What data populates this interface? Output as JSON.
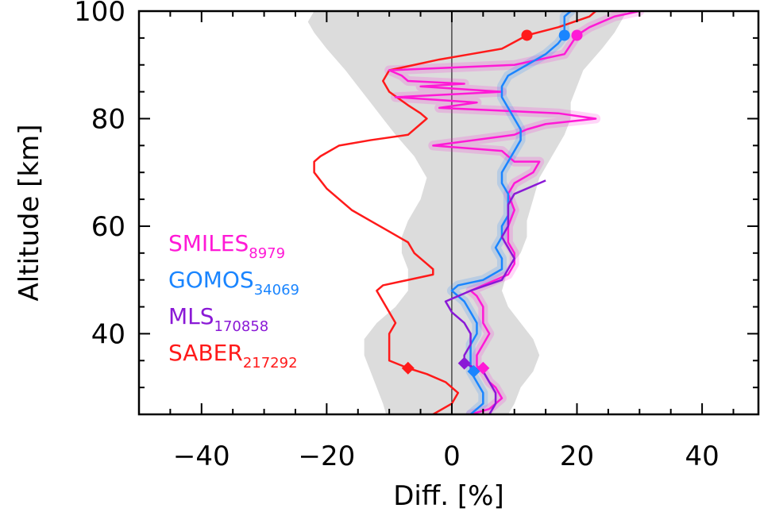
{
  "chart_data": {
    "type": "line",
    "xlabel": "Diff. [%]",
    "ylabel": "Altitude [km]",
    "xlim": [
      -50,
      49
    ],
    "ylim": [
      25,
      100
    ],
    "xticks": [
      -40,
      -20,
      0,
      20,
      40
    ],
    "xtick_labels": [
      "−40",
      "−20",
      "0",
      "20",
      "40"
    ],
    "yticks": [
      40,
      60,
      80,
      100
    ],
    "ytick_labels": [
      "40",
      "60",
      "80",
      "100"
    ],
    "grid": false,
    "legend_position": "left-center",
    "colors": {
      "SMILES": "#ff19d6",
      "GOMOS": "#1a85ff",
      "MLS": "#8a19d6",
      "SABER": "#ff1a1a",
      "envelope": "#dcdcdc",
      "zero_line": "#000000"
    },
    "legend": [
      {
        "key": "SMILES",
        "name": "SMILES",
        "sub": "8979"
      },
      {
        "key": "GOMOS",
        "name": "GOMOS",
        "sub": "34069"
      },
      {
        "key": "MLS",
        "name": "MLS",
        "sub": "170858"
      },
      {
        "key": "SABER",
        "name": "SABER",
        "sub": "217292"
      }
    ],
    "envelope": {
      "left": [
        [
          -10.5,
          25
        ],
        [
          -11,
          27
        ],
        [
          -12,
          30
        ],
        [
          -13,
          33
        ],
        [
          -14,
          36
        ],
        [
          -14,
          39
        ],
        [
          -12,
          42
        ],
        [
          -9,
          45
        ],
        [
          -7,
          48
        ],
        [
          -7,
          52
        ],
        [
          -8,
          55
        ],
        [
          -8,
          58
        ],
        [
          -7,
          61
        ],
        [
          -5,
          65
        ],
        [
          -4,
          69
        ],
        [
          -6,
          73
        ],
        [
          -9,
          77
        ],
        [
          -11,
          80
        ],
        [
          -13,
          83
        ],
        [
          -15,
          86
        ],
        [
          -17,
          89
        ],
        [
          -20,
          93
        ],
        [
          -22,
          96
        ],
        [
          -23,
          98
        ],
        [
          -22,
          100
        ]
      ],
      "right": [
        [
          9,
          25
        ],
        [
          10,
          27
        ],
        [
          11,
          30
        ],
        [
          13,
          33
        ],
        [
          14,
          36
        ],
        [
          13,
          39
        ],
        [
          11,
          42
        ],
        [
          9,
          45
        ],
        [
          8,
          48
        ],
        [
          9,
          52
        ],
        [
          11,
          55
        ],
        [
          12,
          58
        ],
        [
          12,
          61
        ],
        [
          13,
          65
        ],
        [
          14,
          69
        ],
        [
          16,
          73
        ],
        [
          18,
          77
        ],
        [
          19,
          80
        ],
        [
          19,
          83
        ],
        [
          20,
          86
        ],
        [
          21,
          89
        ],
        [
          24,
          93
        ],
        [
          26,
          96
        ],
        [
          27,
          98
        ],
        [
          28,
          100
        ]
      ]
    },
    "series": [
      {
        "key": "SABER",
        "points": [
          [
            -3,
            25
          ],
          [
            0,
            27
          ],
          [
            1,
            29
          ],
          [
            -1,
            31
          ],
          [
            -4,
            32.5
          ],
          [
            -7,
            33.6
          ],
          [
            -10,
            35
          ],
          [
            -10,
            38
          ],
          [
            -10,
            40
          ],
          [
            -9,
            42
          ],
          [
            -10,
            44
          ],
          [
            -11,
            46
          ],
          [
            -12,
            48
          ],
          [
            -11,
            49
          ],
          [
            -3,
            51
          ],
          [
            -3,
            52
          ],
          [
            -4,
            53
          ],
          [
            -6,
            55
          ],
          [
            -7,
            57
          ],
          [
            -10,
            59
          ],
          [
            -13,
            61
          ],
          [
            -16,
            63
          ],
          [
            -18,
            65
          ],
          [
            -20,
            67
          ],
          [
            -22,
            70
          ],
          [
            -22,
            72
          ],
          [
            -21,
            73
          ],
          [
            -18,
            75
          ],
          [
            -13,
            76
          ],
          [
            -7,
            77
          ],
          [
            -5,
            79
          ],
          [
            -4,
            80
          ],
          [
            -5,
            81
          ],
          [
            -7,
            82.5
          ],
          [
            -10,
            85
          ],
          [
            -11,
            87
          ],
          [
            -10,
            89
          ],
          [
            -6,
            90
          ],
          [
            -2,
            91
          ],
          [
            3,
            92
          ],
          [
            8,
            93
          ],
          [
            12,
            95.5
          ],
          [
            17,
            97
          ],
          [
            22,
            99
          ],
          [
            23,
            100
          ]
        ]
      },
      {
        "key": "SMILES",
        "points": [
          [
            3,
            25
          ],
          [
            6,
            26
          ],
          [
            8,
            28
          ],
          [
            7,
            30
          ],
          [
            6,
            31
          ],
          [
            5,
            33
          ],
          [
            4,
            34
          ],
          [
            4,
            36
          ],
          [
            5,
            38
          ],
          [
            6,
            40
          ],
          [
            5,
            42
          ],
          [
            5,
            45
          ],
          [
            4,
            47
          ],
          [
            3,
            48
          ],
          [
            9,
            51
          ],
          [
            10,
            53
          ],
          [
            10,
            55
          ],
          [
            9,
            57
          ],
          [
            9,
            60
          ],
          [
            10,
            63
          ],
          [
            9,
            66
          ],
          [
            10,
            68
          ],
          [
            13,
            70
          ],
          [
            14,
            72
          ],
          [
            10,
            72
          ],
          [
            8,
            74
          ],
          [
            -3,
            75
          ],
          [
            10,
            77
          ],
          [
            12,
            78
          ],
          [
            15,
            79
          ],
          [
            23,
            80
          ],
          [
            17,
            81
          ],
          [
            -2,
            82
          ],
          [
            4,
            83
          ],
          [
            -9,
            84
          ],
          [
            8,
            85
          ],
          [
            -5,
            86
          ],
          [
            2,
            86.5
          ],
          [
            -7,
            87
          ],
          [
            -8,
            88
          ],
          [
            -10,
            89
          ],
          [
            10,
            90
          ],
          [
            18,
            92
          ],
          [
            20,
            95.5
          ],
          [
            22,
            97
          ],
          [
            26,
            99
          ],
          [
            30,
            100
          ]
        ]
      },
      {
        "key": "GOMOS",
        "points": [
          [
            3,
            25
          ],
          [
            5,
            27
          ],
          [
            5,
            29
          ],
          [
            4,
            31
          ],
          [
            3,
            33
          ],
          [
            3,
            34
          ],
          [
            3,
            36
          ],
          [
            3,
            38
          ],
          [
            4,
            40
          ],
          [
            4,
            42
          ],
          [
            3,
            44
          ],
          [
            2,
            46
          ],
          [
            0,
            48
          ],
          [
            1,
            49
          ],
          [
            5,
            50
          ],
          [
            8,
            52
          ],
          [
            8,
            54
          ],
          [
            7,
            56
          ],
          [
            8,
            58
          ],
          [
            8,
            60
          ],
          [
            9,
            62
          ],
          [
            9,
            64
          ],
          [
            9,
            66
          ],
          [
            8,
            68
          ],
          [
            8,
            70
          ],
          [
            9,
            72
          ],
          [
            10,
            74
          ],
          [
            11,
            76
          ],
          [
            11,
            78
          ],
          [
            10,
            80
          ],
          [
            9,
            82
          ],
          [
            8,
            84
          ],
          [
            8,
            86
          ],
          [
            9,
            88
          ],
          [
            12,
            90
          ],
          [
            15,
            92
          ],
          [
            17,
            94
          ],
          [
            18,
            95.5
          ],
          [
            18,
            97
          ],
          [
            18,
            99
          ],
          [
            19,
            100
          ]
        ]
      },
      {
        "key": "MLS",
        "points": [
          [
            6,
            25
          ],
          [
            7,
            27
          ],
          [
            7,
            29
          ],
          [
            6,
            31
          ],
          [
            5,
            33
          ],
          [
            3,
            34
          ],
          [
            2,
            34.5
          ],
          [
            2,
            36
          ],
          [
            3,
            38
          ],
          [
            3,
            40
          ],
          [
            2,
            42
          ],
          [
            0,
            44
          ],
          [
            -1,
            46
          ],
          [
            1,
            47
          ],
          [
            3,
            48
          ],
          [
            8,
            50
          ],
          [
            9,
            52
          ],
          [
            10,
            54
          ],
          [
            9,
            56
          ],
          [
            8,
            58
          ],
          [
            9,
            60
          ],
          [
            9,
            62
          ],
          [
            9,
            64
          ],
          [
            10,
            66
          ],
          [
            15,
            68.5
          ]
        ]
      }
    ],
    "band_series": [
      "SMILES",
      "GOMOS"
    ],
    "markers": [
      {
        "key": "SABER",
        "shape": "circle",
        "x": 12,
        "y": 95.5
      },
      {
        "key": "GOMOS",
        "shape": "circle",
        "x": 18,
        "y": 95.5
      },
      {
        "key": "SMILES",
        "shape": "circle",
        "x": 20,
        "y": 95.5
      },
      {
        "key": "SABER",
        "shape": "diamond",
        "x": -7,
        "y": 33.6
      },
      {
        "key": "MLS",
        "shape": "diamond",
        "x": 2,
        "y": 34.5
      },
      {
        "key": "SMILES",
        "shape": "diamond",
        "x": 5,
        "y": 33.6
      },
      {
        "key": "GOMOS",
        "shape": "diamond",
        "x": 3.5,
        "y": 33
      }
    ]
  }
}
